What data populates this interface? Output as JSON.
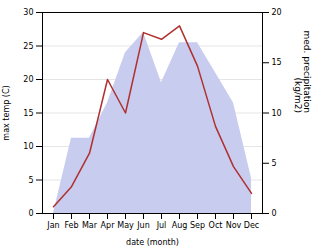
{
  "chart_data": {
    "type": "line",
    "categories": [
      "Jan",
      "Feb",
      "Mar",
      "Apr",
      "May",
      "Jun",
      "Jul",
      "Aug",
      "Sep",
      "Oct",
      "Nov",
      "Dec"
    ],
    "series": [
      {
        "type": "area",
        "axis": "y2",
        "color": "#c8ccee",
        "values": [
          0,
          7.5,
          7.5,
          11,
          16,
          18,
          13,
          17,
          17,
          14,
          11,
          3.5
        ]
      },
      {
        "type": "line",
        "color": "#b03030",
        "values": [
          1,
          4,
          9,
          20,
          15,
          27,
          26,
          28,
          22,
          13,
          7,
          3
        ]
      }
    ],
    "xlabel": "date (month)",
    "ylabel": "max temp (C)",
    "y2label": "med. precipitation\n(kg/m2)",
    "ylim": [
      0,
      30
    ],
    "yticks": [
      0,
      5,
      10,
      15,
      20,
      25,
      30
    ],
    "y2lim": [
      0,
      20
    ],
    "y2ticks": [
      0,
      5,
      10,
      15,
      20
    ],
    "grid": true
  }
}
